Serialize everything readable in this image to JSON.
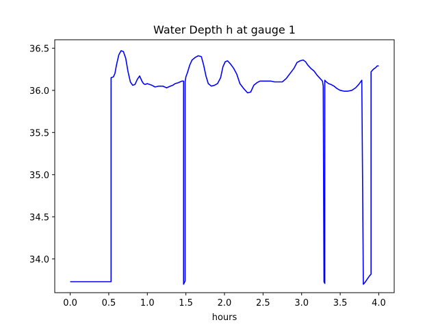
{
  "chart_data": {
    "type": "line",
    "title": "Water Depth h at gauge 1",
    "xlabel": "hours",
    "ylabel": "",
    "xlim": [
      -0.2,
      4.2
    ],
    "ylim": [
      33.6,
      36.6
    ],
    "xticks": [
      0.0,
      0.5,
      1.0,
      1.5,
      2.0,
      2.5,
      3.0,
      3.5,
      4.0
    ],
    "xtick_labels": [
      "0.0",
      "0.5",
      "1.0",
      "1.5",
      "2.0",
      "2.5",
      "3.0",
      "3.5",
      "4.0"
    ],
    "yticks": [
      34.0,
      34.5,
      35.0,
      35.5,
      36.0,
      36.5
    ],
    "ytick_labels": [
      "34.0",
      "34.5",
      "35.0",
      "35.5",
      "36.0",
      "36.5"
    ],
    "grid": false,
    "legend": "none",
    "series": [
      {
        "color": "#0000ff",
        "x": [
          0.0,
          0.2,
          0.4,
          0.52,
          0.53,
          0.53,
          0.56,
          0.58,
          0.6,
          0.63,
          0.66,
          0.69,
          0.72,
          0.75,
          0.78,
          0.81,
          0.84,
          0.87,
          0.9,
          0.93,
          0.95,
          0.97,
          1.0,
          1.03,
          1.06,
          1.1,
          1.15,
          1.2,
          1.25,
          1.3,
          1.33,
          1.36,
          1.4,
          1.45,
          1.47,
          1.47,
          1.48,
          1.49,
          1.49,
          1.5,
          1.52,
          1.55,
          1.58,
          1.62,
          1.66,
          1.7,
          1.73,
          1.76,
          1.79,
          1.83,
          1.87,
          1.91,
          1.95,
          1.98,
          2.01,
          2.04,
          2.08,
          2.12,
          2.16,
          2.2,
          2.25,
          2.3,
          2.34,
          2.38,
          2.42,
          2.46,
          2.5,
          2.55,
          2.6,
          2.65,
          2.7,
          2.75,
          2.8,
          2.85,
          2.9,
          2.94,
          2.98,
          3.02,
          3.05,
          3.08,
          3.12,
          3.16,
          3.2,
          3.24,
          3.27,
          3.28,
          3.29,
          3.3,
          3.3,
          3.32,
          3.35,
          3.38,
          3.42,
          3.46,
          3.5,
          3.55,
          3.6,
          3.65,
          3.7,
          3.74,
          3.78,
          3.79,
          3.8,
          3.82,
          3.85,
          3.88,
          3.9,
          3.9,
          3.93,
          3.96,
          3.98,
          4.0
        ],
        "y": [
          33.73,
          33.73,
          33.73,
          33.73,
          33.73,
          36.15,
          36.16,
          36.2,
          36.3,
          36.42,
          36.47,
          36.46,
          36.38,
          36.22,
          36.1,
          36.06,
          36.07,
          36.13,
          36.17,
          36.11,
          36.08,
          36.07,
          36.08,
          36.07,
          36.06,
          36.04,
          36.05,
          36.05,
          36.03,
          36.05,
          36.06,
          36.08,
          36.09,
          36.11,
          36.11,
          33.7,
          33.72,
          33.74,
          36.1,
          36.16,
          36.21,
          36.3,
          36.36,
          36.39,
          36.41,
          36.4,
          36.3,
          36.17,
          36.08,
          36.05,
          36.06,
          36.08,
          36.15,
          36.28,
          36.34,
          36.35,
          36.31,
          36.26,
          36.19,
          36.08,
          36.02,
          35.97,
          35.98,
          36.06,
          36.09,
          36.11,
          36.11,
          36.11,
          36.11,
          36.1,
          36.1,
          36.1,
          36.14,
          36.2,
          36.26,
          36.33,
          36.35,
          36.36,
          36.34,
          36.3,
          36.26,
          36.23,
          36.18,
          36.14,
          36.11,
          36.05,
          33.73,
          33.71,
          36.12,
          36.1,
          36.08,
          36.07,
          36.05,
          36.02,
          36.0,
          35.99,
          35.99,
          36.0,
          36.03,
          36.07,
          36.12,
          34.95,
          33.7,
          33.72,
          33.76,
          33.8,
          33.82,
          36.22,
          36.25,
          36.27,
          36.29,
          36.29
        ]
      }
    ]
  }
}
